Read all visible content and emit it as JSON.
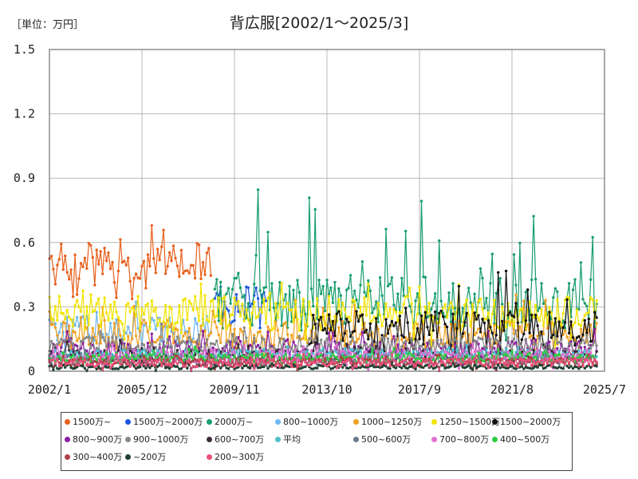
{
  "unit_label": "［単位：万円］",
  "chart_data": {
    "type": "line",
    "title": "背広服[2002/1～2025/3]",
    "xlabel": "",
    "ylabel": "",
    "ylim": [
      0,
      1.5
    ],
    "y_ticks": [
      "0",
      "0.3",
      "0.6",
      "0.9",
      "1.2",
      "1.5"
    ],
    "x_ticks": [
      "2002/1",
      "2005/12",
      "2009/11",
      "2013/10",
      "2017/9",
      "2021/8",
      "2025/7"
    ],
    "x_tick_years": [
      2002.0,
      2005.917,
      2009.833,
      2013.75,
      2017.667,
      2021.583,
      2025.5
    ],
    "x_range": [
      2002.0,
      2025.5
    ],
    "grid": true,
    "legend_position": "bottom",
    "series": [
      {
        "name": "1500万~",
        "color": "#e8601c",
        "start": 2002.0,
        "end": 2008.9,
        "base": 0.5,
        "amp": 0.1,
        "spike": 0.18
      },
      {
        "name": "1500万~2000万",
        "color": "#1a56db",
        "start": 2009.0,
        "end": 2011.2,
        "base": 0.3,
        "amp": 0.1,
        "spike": 0.22
      },
      {
        "name": "2000万~",
        "color": "#1a9e6e",
        "start": 2009.0,
        "end": 2025.2,
        "base": 0.32,
        "amp": 0.12,
        "spike": 0.55
      },
      {
        "name": "800~1000万",
        "color": "#6fb7f0",
        "start": 2002.0,
        "end": 2008.9,
        "base": 0.2,
        "amp": 0.06,
        "spike": 0.1
      },
      {
        "name": "1000~1250万",
        "color": "#f0a020",
        "start": 2002.0,
        "end": 2025.2,
        "base": 0.17,
        "amp": 0.07,
        "spike": 0.15
      },
      {
        "name": "1250~1500万",
        "color": "#f2e400",
        "start": 2002.0,
        "end": 2025.2,
        "base": 0.27,
        "amp": 0.08,
        "spike": 0.15
      },
      {
        "name": "1500~2000万",
        "color": "#111111",
        "start": 2013.0,
        "end": 2025.2,
        "base": 0.2,
        "amp": 0.08,
        "spike": 0.25
      },
      {
        "name": "800~900万",
        "color": "#8a1fa0",
        "start": 2002.0,
        "end": 2025.2,
        "base": 0.1,
        "amp": 0.04,
        "spike": 0.08
      },
      {
        "name": "900~1000万",
        "color": "#888888",
        "start": 2002.0,
        "end": 2025.2,
        "base": 0.12,
        "amp": 0.04,
        "spike": 0.07
      },
      {
        "name": "600~700万",
        "color": "#3a2a3a",
        "start": 2002.0,
        "end": 2025.2,
        "base": 0.07,
        "amp": 0.03,
        "spike": 0.05
      },
      {
        "name": "平均",
        "color": "#4ec0cf",
        "start": 2002.0,
        "end": 2025.2,
        "base": 0.08,
        "amp": 0.02,
        "spike": 0.03
      },
      {
        "name": "500~600万",
        "color": "#6a7a8a",
        "start": 2002.0,
        "end": 2025.2,
        "base": 0.05,
        "amp": 0.02,
        "spike": 0.04
      },
      {
        "name": "700~800万",
        "color": "#e070d0",
        "start": 2002.0,
        "end": 2025.2,
        "base": 0.07,
        "amp": 0.03,
        "spike": 0.05
      },
      {
        "name": "400~500万",
        "color": "#2ecc40",
        "start": 2002.0,
        "end": 2025.2,
        "base": 0.06,
        "amp": 0.02,
        "spike": 0.04
      },
      {
        "name": "300~400万",
        "color": "#b0404a",
        "start": 2002.0,
        "end": 2025.2,
        "base": 0.04,
        "amp": 0.02,
        "spike": 0.03
      },
      {
        "name": "~200万",
        "color": "#1e4030",
        "start": 2002.0,
        "end": 2025.2,
        "base": 0.02,
        "amp": 0.01,
        "spike": 0.02
      },
      {
        "name": "200~300万",
        "color": "#e8507a",
        "start": 2002.0,
        "end": 2025.2,
        "base": 0.04,
        "amp": 0.02,
        "spike": 0.03
      }
    ]
  }
}
